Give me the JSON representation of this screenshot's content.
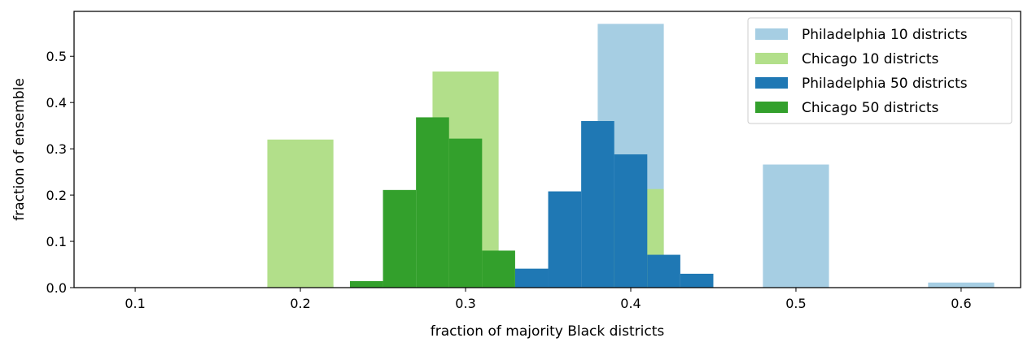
{
  "chart_data": {
    "type": "bar",
    "xlabel": "fraction of majority Black districts",
    "ylabel": "fraction of ensemble",
    "xlim": [
      0.063,
      0.636
    ],
    "ylim": [
      0.0,
      0.597
    ],
    "xticks": [
      0.1,
      0.2,
      0.3,
      0.4,
      0.5,
      0.6
    ],
    "xtick_labels": [
      "0.1",
      "0.2",
      "0.3",
      "0.4",
      "0.5",
      "0.6"
    ],
    "yticks": [
      0.0,
      0.1,
      0.2,
      0.3,
      0.4,
      0.5
    ],
    "ytick_labels": [
      "0.0",
      "0.1",
      "0.2",
      "0.3",
      "0.4",
      "0.5"
    ],
    "legend_position": "top-right",
    "series": [
      {
        "name": "Philadelphia 10 districts",
        "color": "#a6cee3",
        "bar_width": 0.02,
        "points": [
          {
            "x": 0.2,
            "y": 0.006
          },
          {
            "x": 0.3,
            "y": 0.145
          },
          {
            "x": 0.4,
            "y": 0.57
          },
          {
            "x": 0.5,
            "y": 0.266
          },
          {
            "x": 0.6,
            "y": 0.011
          }
        ]
      },
      {
        "name": "Chicago 10 districts",
        "color": "#b2df8a",
        "bar_width": 0.02,
        "points": [
          {
            "x": 0.2,
            "y": 0.32
          },
          {
            "x": 0.3,
            "y": 0.467
          },
          {
            "x": 0.4,
            "y": 0.213
          }
        ]
      },
      {
        "name": "Philadelphia 50 districts",
        "color": "#1f78b4",
        "bar_width": 0.01,
        "points": [
          {
            "x": 0.34,
            "y": 0.041
          },
          {
            "x": 0.36,
            "y": 0.208
          },
          {
            "x": 0.38,
            "y": 0.36
          },
          {
            "x": 0.4,
            "y": 0.288
          },
          {
            "x": 0.42,
            "y": 0.071
          },
          {
            "x": 0.44,
            "y": 0.03
          }
        ]
      },
      {
        "name": "Chicago 50 districts",
        "color": "#33a02c",
        "bar_width": 0.01,
        "points": [
          {
            "x": 0.24,
            "y": 0.014
          },
          {
            "x": 0.26,
            "y": 0.211
          },
          {
            "x": 0.28,
            "y": 0.368
          },
          {
            "x": 0.3,
            "y": 0.322
          },
          {
            "x": 0.32,
            "y": 0.08
          }
        ]
      }
    ]
  }
}
